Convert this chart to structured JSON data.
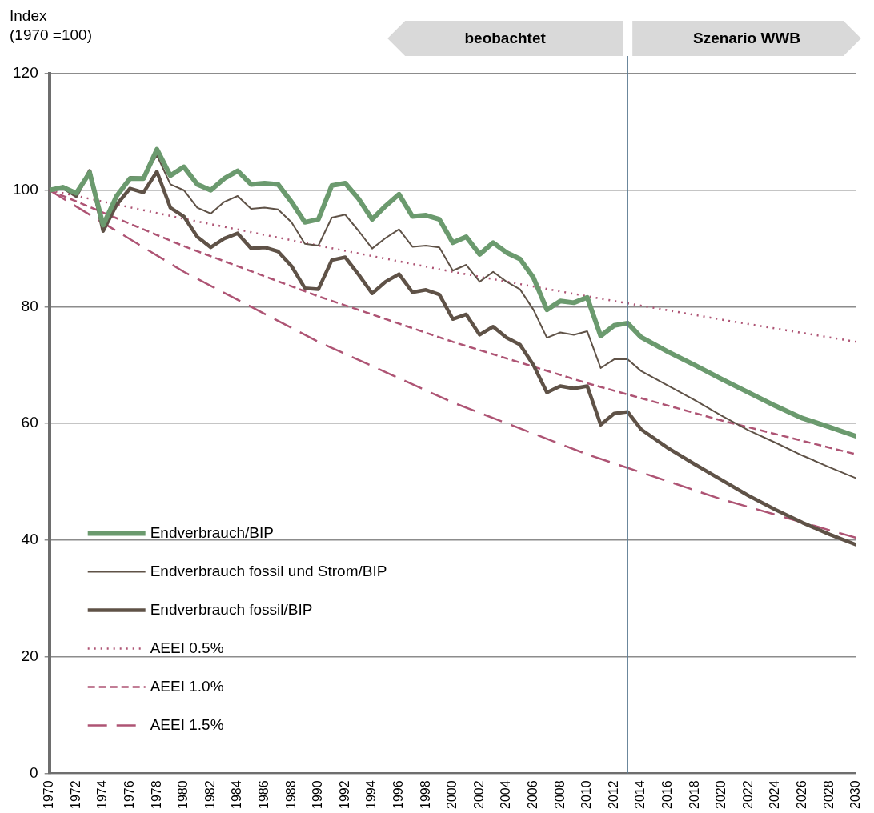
{
  "chart_data": {
    "type": "line",
    "ylabel": "Index\n(1970 =100)",
    "xlim": [
      1970,
      2030
    ],
    "xticks": [
      1970,
      1972,
      1974,
      1976,
      1978,
      1980,
      1982,
      1984,
      1986,
      1988,
      1990,
      1992,
      1994,
      1996,
      1998,
      2000,
      2002,
      2004,
      2006,
      2008,
      2010,
      2012,
      2014,
      2016,
      2018,
      2020,
      2022,
      2024,
      2026,
      2028,
      2030
    ],
    "ylim": [
      0,
      120
    ],
    "yticks": [
      0,
      20,
      40,
      60,
      80,
      100,
      120
    ],
    "grid": "y",
    "legend": "bottom left",
    "marker": "none",
    "annotations": [
      "beobachtet",
      "Szenario WWB"
    ],
    "ref_lines": [
      {
        "axis": "x",
        "value": 2013,
        "label": null,
        "color": "#5f7d94"
      }
    ],
    "series": [
      {
        "name": "Endverbrauch/BIP",
        "color": "#6b9a6e",
        "line_style": "solid",
        "x": [
          1970,
          1971,
          1972,
          1973,
          1974,
          1975,
          1976,
          1977,
          1978,
          1979,
          1980,
          1981,
          1982,
          1983,
          1984,
          1985,
          1986,
          1987,
          1988,
          1989,
          1990,
          1991,
          1992,
          1993,
          1994,
          1995,
          1996,
          1997,
          1998,
          1999,
          2000,
          2001,
          2002,
          2003,
          2004,
          2005,
          2006,
          2007,
          2008,
          2009,
          2010,
          2011,
          2012,
          2013,
          2014,
          2016,
          2018,
          2020,
          2022,
          2024,
          2026,
          2028,
          2030
        ],
        "values": [
          100,
          100.5,
          99.5,
          103,
          94,
          99,
          102,
          102,
          107,
          102.5,
          104,
          101,
          100,
          102,
          103.3,
          101,
          101.2,
          101,
          98,
          94.5,
          95,
          100.8,
          101.2,
          98.5,
          95,
          97.3,
          99.3,
          95.5,
          95.7,
          95,
          91,
          92,
          89,
          91,
          89.3,
          88.2,
          85,
          79.5,
          81,
          80.7,
          81.6,
          75,
          76.8,
          77.2,
          74.8,
          72.3,
          70,
          67.6,
          65.3,
          63,
          60.9,
          59.4,
          57.8
        ]
      },
      {
        "name": "Endverbrauch fossil und Strom/BIP",
        "color": "#5f5247",
        "line_style": "solid",
        "x": [
          1970,
          1971,
          1972,
          1973,
          1974,
          1975,
          1976,
          1977,
          1978,
          1979,
          1980,
          1981,
          1982,
          1983,
          1984,
          1985,
          1986,
          1987,
          1988,
          1989,
          1990,
          1991,
          1992,
          1993,
          1994,
          1995,
          1996,
          1997,
          1998,
          1999,
          2000,
          2001,
          2002,
          2003,
          2004,
          2005,
          2006,
          2007,
          2008,
          2009,
          2010,
          2011,
          2012,
          2013,
          2014,
          2016,
          2018,
          2020,
          2022,
          2024,
          2026,
          2028,
          2030
        ],
        "values": [
          100,
          100.5,
          99,
          103.3,
          93,
          99,
          102.3,
          102.2,
          106,
          101,
          100,
          97,
          96,
          98,
          99,
          96.8,
          97,
          96.7,
          94.5,
          90.8,
          90.5,
          95.3,
          95.8,
          93,
          90,
          91.8,
          93.3,
          90.3,
          90.5,
          90.2,
          86.2,
          87.2,
          84.3,
          86,
          84.3,
          83,
          79.5,
          74.7,
          75.6,
          75.2,
          75.8,
          69.5,
          71,
          71,
          69,
          66.5,
          64,
          61.3,
          58.8,
          56.7,
          54.5,
          52.5,
          50.6
        ]
      },
      {
        "name": "Endverbrauch fossil/BIP",
        "color": "#5f5247",
        "line_style": "solid",
        "x": [
          1970,
          1971,
          1972,
          1973,
          1974,
          1975,
          1976,
          1977,
          1978,
          1979,
          1980,
          1981,
          1982,
          1983,
          1984,
          1985,
          1986,
          1987,
          1988,
          1989,
          1990,
          1991,
          1992,
          1993,
          1994,
          1995,
          1996,
          1997,
          1998,
          1999,
          2000,
          2001,
          2002,
          2003,
          2004,
          2005,
          2006,
          2007,
          2008,
          2009,
          2010,
          2011,
          2012,
          2013,
          2014,
          2016,
          2018,
          2020,
          2022,
          2024,
          2026,
          2028,
          2030
        ],
        "values": [
          100,
          100.5,
          99,
          103.3,
          93,
          97.5,
          100.3,
          99.6,
          103.2,
          97,
          95.5,
          92,
          90.2,
          91.7,
          92.6,
          90,
          90.2,
          89.5,
          87,
          83.2,
          83,
          88,
          88.5,
          85.5,
          82.3,
          84.3,
          85.6,
          82.5,
          82.9,
          82.1,
          77.9,
          78.7,
          75.2,
          76.6,
          74.7,
          73.5,
          70,
          65.3,
          66.4,
          66,
          66.4,
          59.8,
          61.7,
          62,
          59,
          55.8,
          53,
          50.3,
          47.6,
          45.2,
          43,
          41,
          39.2
        ]
      },
      {
        "name": "AEEI 0.5%",
        "color": "#ae5474",
        "line_style": "dotted",
        "x": [
          1970,
          1980,
          1990,
          2000,
          2010,
          2020,
          2030
        ],
        "values": [
          100,
          95.1,
          90.5,
          86,
          81.8,
          77.8,
          74
        ]
      },
      {
        "name": "AEEI 1.0%",
        "color": "#ae5474",
        "line_style": "dashed",
        "x": [
          1970,
          1980,
          1990,
          2000,
          2010,
          2020,
          2030
        ],
        "values": [
          100,
          90.4,
          81.8,
          74,
          66.9,
          60.5,
          54.7
        ]
      },
      {
        "name": "AEEI 1.5%",
        "color": "#ae5474",
        "line_style": "long-dashed",
        "x": [
          1970,
          1980,
          1990,
          2000,
          2010,
          2020,
          2030
        ],
        "values": [
          100,
          86,
          74,
          63.6,
          54.7,
          47,
          40.4
        ]
      }
    ]
  }
}
